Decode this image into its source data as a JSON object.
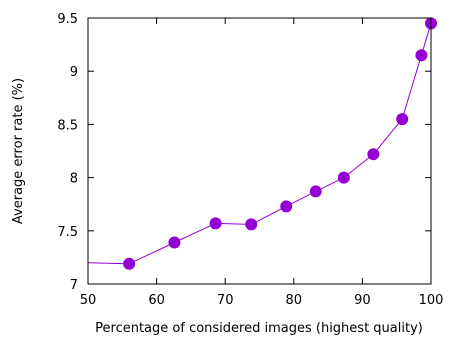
{
  "chart_data": {
    "type": "line",
    "title": "",
    "xlabel": "Percentage of considered images (highest quality)",
    "ylabel": "Average error rate (%)",
    "xlim": [
      50,
      100
    ],
    "ylim": [
      7,
      9.5
    ],
    "xticks": [
      50,
      60,
      70,
      80,
      90,
      100
    ],
    "xtick_labels": [
      "50",
      "60",
      "70",
      "80",
      "90",
      "100"
    ],
    "yticks": [
      7,
      7.5,
      8,
      8.5,
      9,
      9.5
    ],
    "ytick_labels": [
      "7",
      "7.5",
      "8",
      "8.5",
      "9",
      "9.5"
    ],
    "grid": false,
    "legend": "none",
    "series": [
      {
        "color": "#9400d3",
        "x": [
          50,
          56.0,
          62.6,
          68.6,
          73.8,
          78.9,
          83.2,
          87.3,
          91.6,
          95.8,
          98.6,
          100
        ],
        "y": [
          7.2,
          7.19,
          7.39,
          7.57,
          7.56,
          7.73,
          7.87,
          8.0,
          8.22,
          8.55,
          9.15,
          9.45
        ],
        "marker_from_index": 1
      }
    ]
  }
}
